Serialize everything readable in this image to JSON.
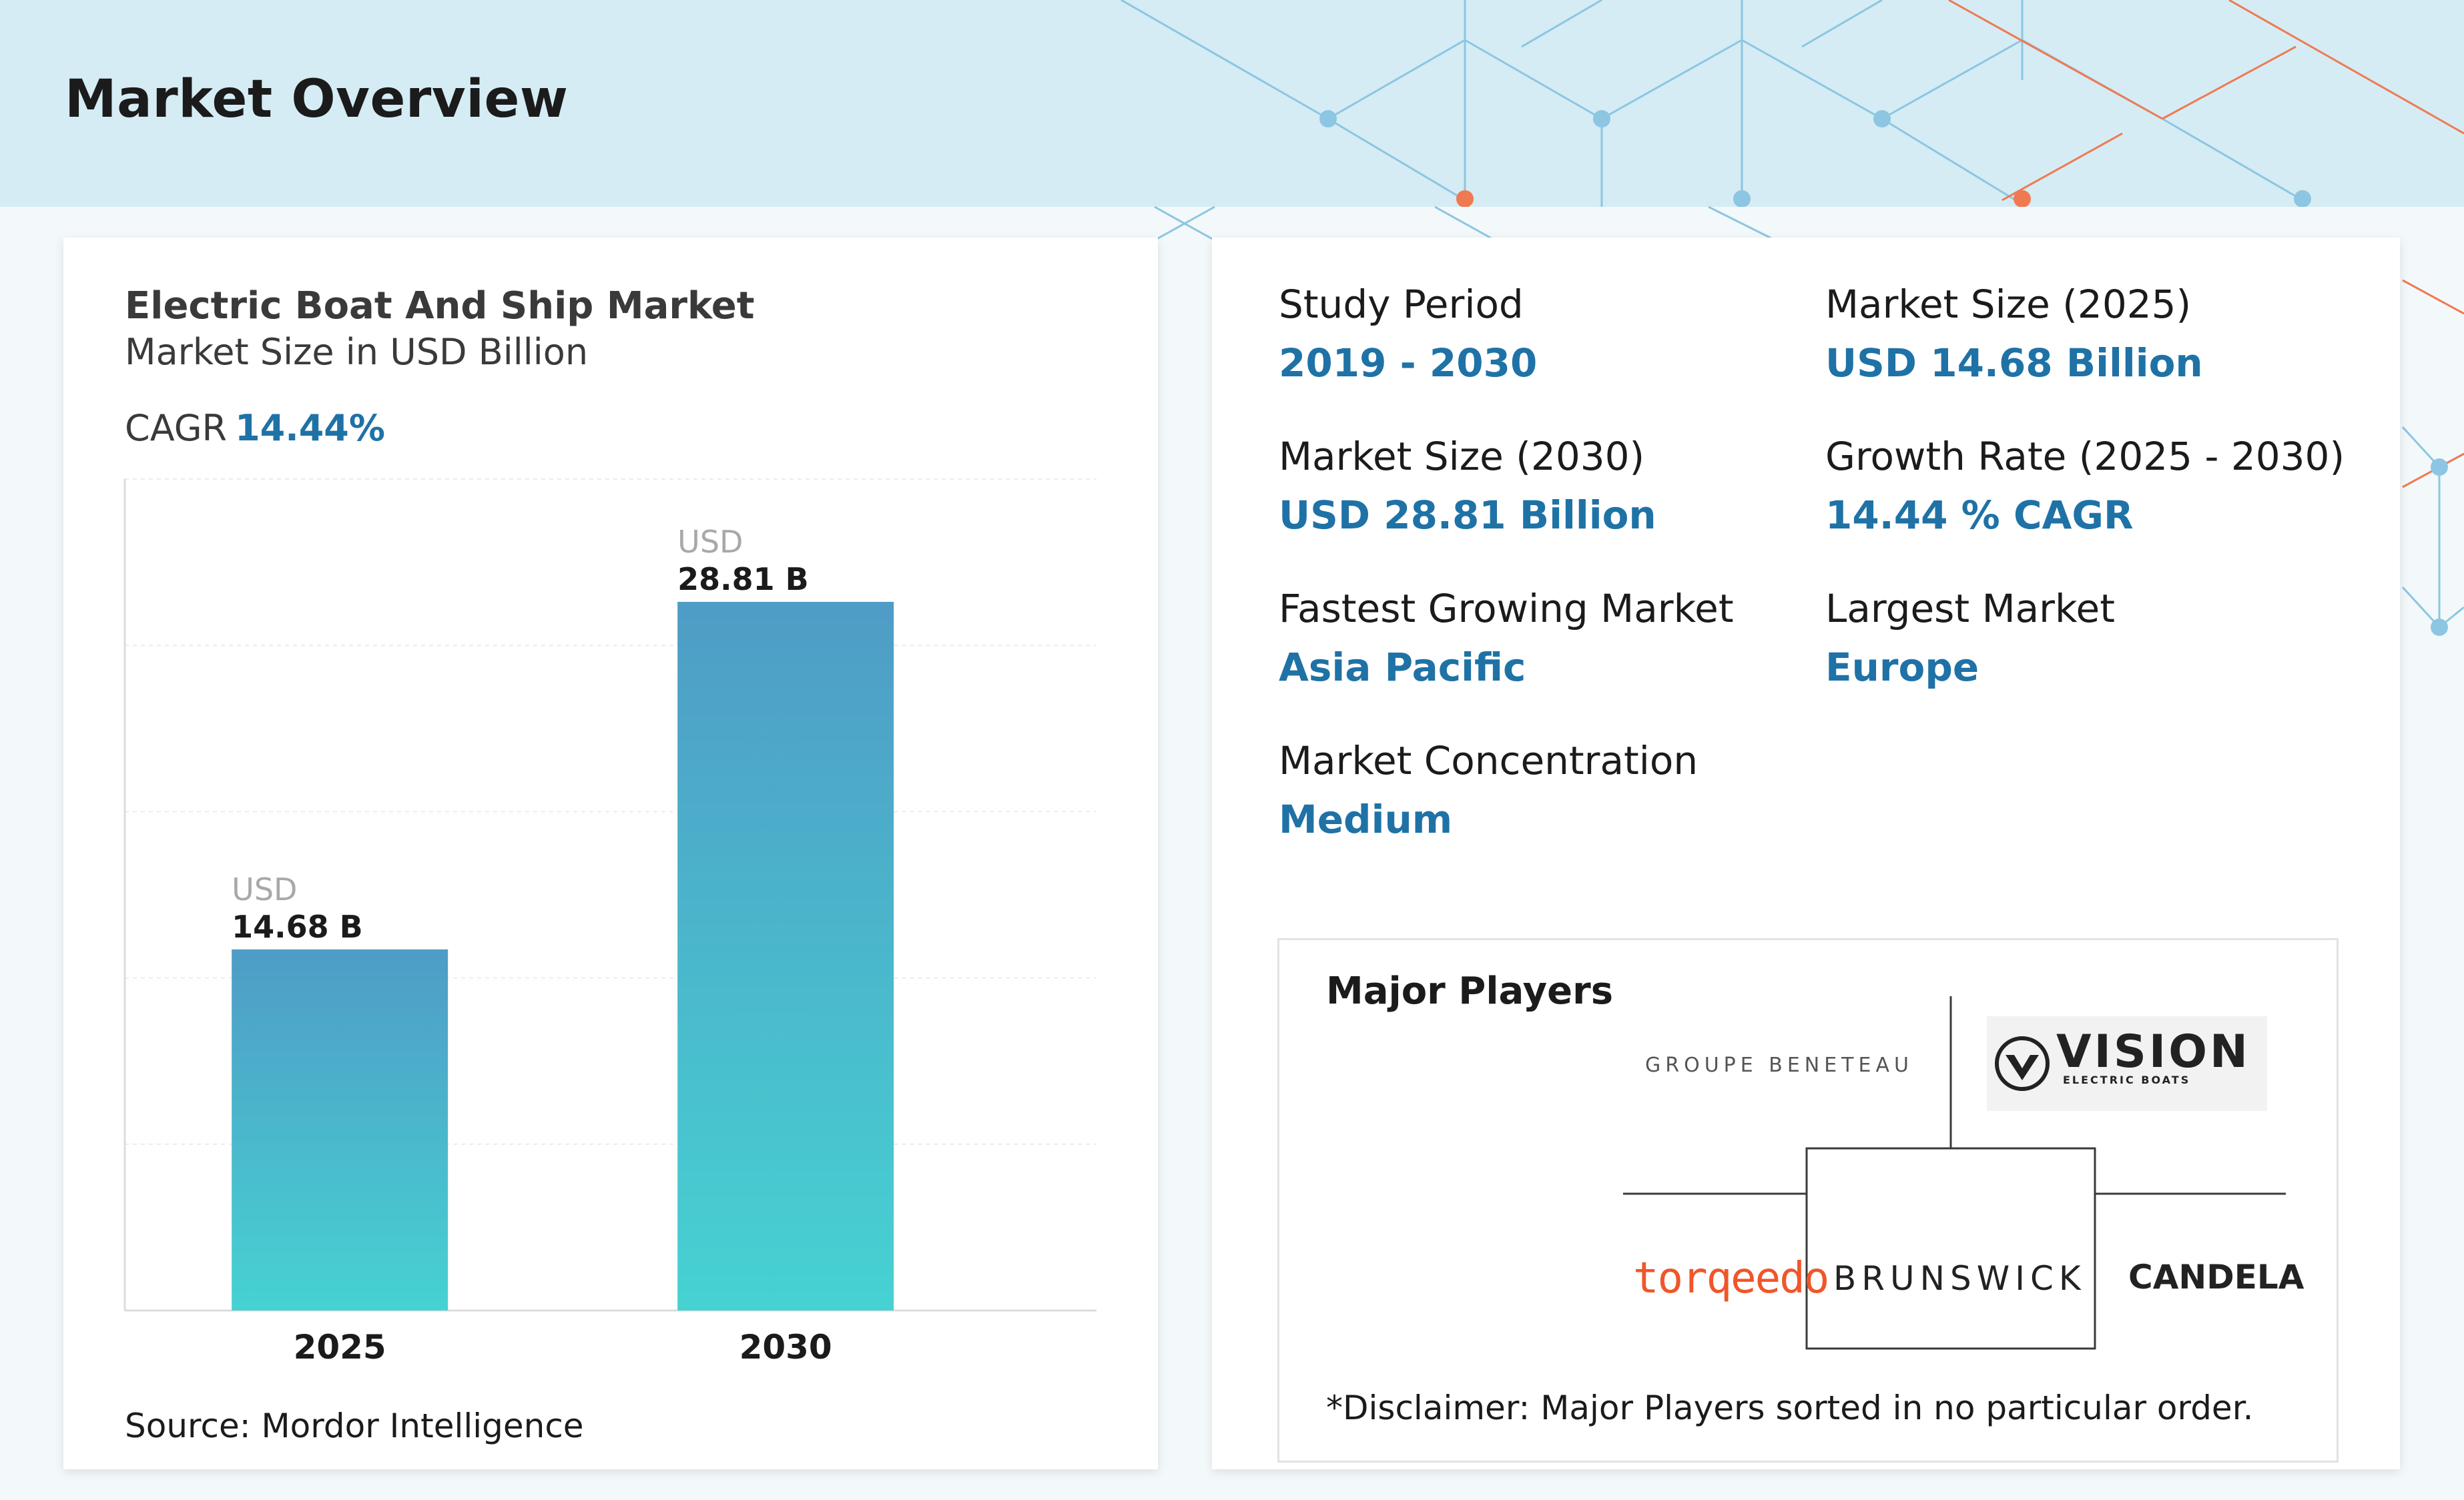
{
  "header": {
    "title": "Market Overview"
  },
  "chart_card": {
    "title": "Electric Boat And Ship Market",
    "subtitle": "Market Size in USD Billion",
    "cagr_label": "CAGR",
    "cagr_value": "14.44%",
    "source": "Source: Mordor Intelligence"
  },
  "chart_data": {
    "type": "bar",
    "categories": [
      "2025",
      "2030"
    ],
    "values": [
      14.68,
      28.81
    ],
    "value_prefix": "USD",
    "value_labels": [
      "14.68 B",
      "28.81 B"
    ],
    "title": "Electric Boat And Ship Market",
    "ylabel": "Market Size in USD Billion",
    "ylim": [
      0,
      33.8
    ],
    "grid": true,
    "gradient": [
      "#4f9cc6",
      "#46d2d2"
    ]
  },
  "stats": {
    "study_period": {
      "label": "Study Period",
      "value": "2019 - 2030"
    },
    "market_size_2025": {
      "label": "Market Size (2025)",
      "value": "USD 14.68 Billion"
    },
    "market_size_2030": {
      "label": "Market Size (2030)",
      "value": "USD 28.81 Billion"
    },
    "growth_rate": {
      "label": "Growth Rate (2025 - 2030)",
      "value": "14.44 % CAGR"
    },
    "fastest_growing": {
      "label": "Fastest Growing Market",
      "value": "Asia Pacific"
    },
    "largest_market": {
      "label": "Largest Market",
      "value": "Europe"
    },
    "concentration": {
      "label": "Market Concentration",
      "value": "Medium"
    }
  },
  "players": {
    "title": "Major Players",
    "logos": {
      "beneteau": "GROUPE BENETEAU",
      "vision": "VISION",
      "vision_sub": "ELECTRIC BOATS",
      "torqeedo": "torqeedo",
      "brunswick": "BRUNSWICK",
      "candela": "CANDELA"
    },
    "disclaimer": "*Disclaimer: Major Players sorted in no particular order."
  },
  "colors": {
    "accent": "#1f72a6",
    "header_bg": "#d5ecf4",
    "orange": "#f0562a"
  }
}
